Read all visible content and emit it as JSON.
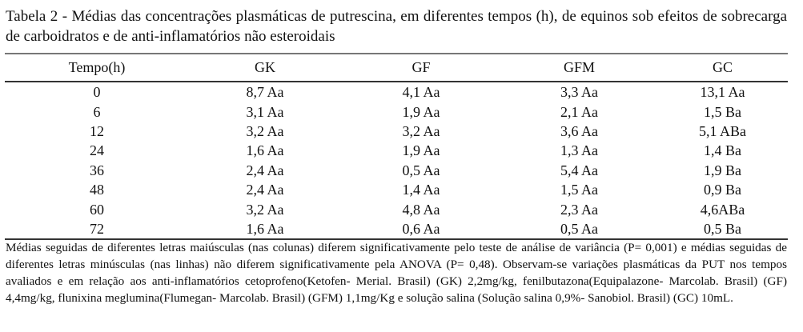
{
  "title": "Tabela 2 - Médias das concentrações plasmáticas de putrescina, em diferentes tempos (h), de equinos sob efeitos de sobrecarga de carboidratos e de anti-inflamatórios não esteroidais",
  "table": {
    "headers": [
      "Tempo(h)",
      "GK",
      "GF",
      "GFM",
      "GC"
    ],
    "rows": [
      [
        "0",
        "8,7 Aa",
        "4,1 Aa",
        "3,3 Aa",
        "13,1 Aa"
      ],
      [
        "6",
        "3,1 Aa",
        "1,9 Aa",
        "2,1 Aa",
        "1,5  Ba"
      ],
      [
        "12",
        "3,2 Aa",
        "3,2 Aa",
        "3,6 Aa",
        " 5,1 ABa"
      ],
      [
        "24",
        "1,6 Aa",
        "1,9 Aa",
        "1,3 Aa",
        "1,4 Ba"
      ],
      [
        "36",
        "2,4 Aa",
        "0,5 Aa",
        "5,4 Aa",
        "1,9 Ba"
      ],
      [
        "48",
        "2,4 Aa",
        "1,4 Aa",
        "1,5 Aa",
        "0,9 Ba"
      ],
      [
        "60",
        "3,2 Aa",
        "4,8 Aa",
        "2,3 Aa",
        " 4,6ABa"
      ],
      [
        "72",
        "1,6 Aa",
        "0,6 Aa",
        "0,5 Aa",
        "0,5 Ba"
      ]
    ]
  },
  "footnote": "Médias seguidas de diferentes letras maiúsculas (nas colunas) diferem significativamente pelo teste de análise de variância (P= 0,001) e médias seguidas de diferentes letras minúsculas (nas linhas) não diferem significativamente pela ANOVA (P= 0,48). Observam-se variações plasmáticas da PUT nos tempos avaliados e em relação aos anti-inflamatórios cetoprofeno(Ketofen- Merial. Brasil) (GK) 2,2mg/kg, fenilbutazona(Equipalazone- Marcolab. Brasil) (GF) 4,4mg/kg,  flunixina meglumina(Flumegan- Marcolab. Brasil)  (GFM) 1,1mg/Kg  e solução salina (Solução salina 0,9%- Sanobiol. Brasil)  (GC) 10mL."
}
